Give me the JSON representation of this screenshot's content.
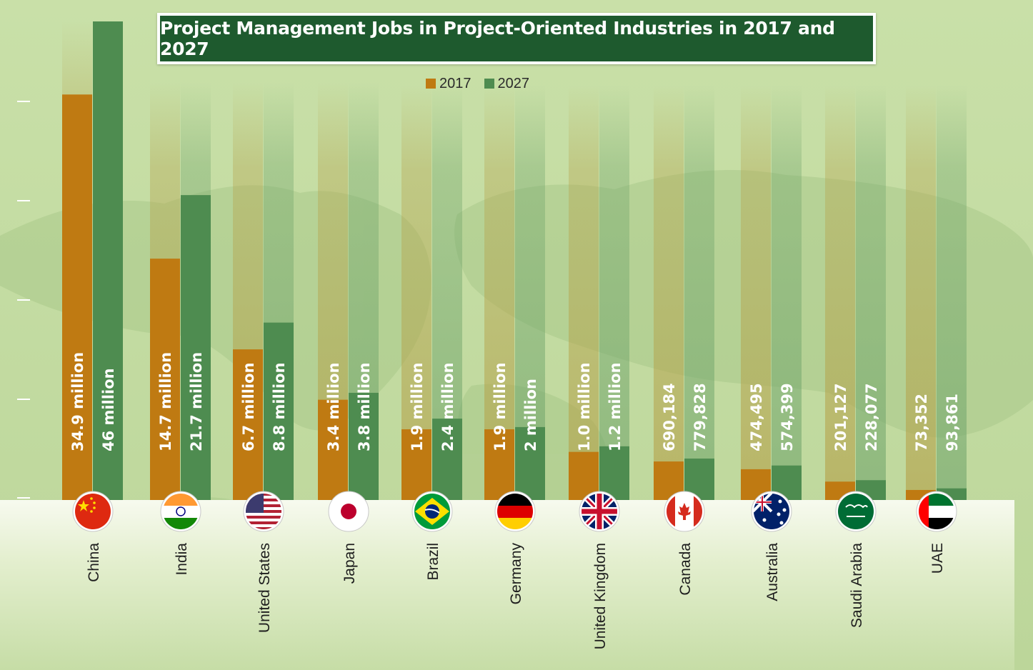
{
  "chart_data": {
    "type": "bar",
    "title": "Project Management Jobs in Project-Oriented Industries in 2017 and 2027",
    "categories": [
      "China",
      "India",
      "United States",
      "Japan",
      "Brazil",
      "Germany",
      "United Kingdom",
      "Canada",
      "Australia",
      "Saudi Arabia",
      "UAE"
    ],
    "series": [
      {
        "name": "2017",
        "color": "#bf7a12",
        "values": [
          34900000,
          14700000,
          6700000,
          3400000,
          1900000,
          1900000,
          1000000,
          690184,
          474495,
          201127,
          73352
        ],
        "labels": [
          "34.9 million",
          "14.7 million",
          "6.7 million",
          "3.4 million",
          "1.9 million",
          "1.9 million",
          "1.0 million",
          "690,184",
          "474,495",
          "201,127",
          "73,352"
        ]
      },
      {
        "name": "2027",
        "color": "#4e8c50",
        "values": [
          46000000,
          21700000,
          8800000,
          3800000,
          2400000,
          2000000,
          1200000,
          779828,
          574399,
          228077,
          93861
        ],
        "labels": [
          "46 million",
          "21.7 million",
          "8.8 million",
          "3.8 million",
          "2.4 million",
          "2 million",
          "1.2 million",
          "779,828",
          "574,399",
          "228,077",
          "93,861"
        ]
      }
    ],
    "xlabel": "",
    "ylabel": "",
    "y_scale": "power",
    "grid": false,
    "legend_position": "top-center",
    "flags": [
      "china-flag",
      "india-flag",
      "united-states-flag",
      "japan-flag",
      "brazil-flag",
      "germany-flag",
      "united-kingdom-flag",
      "canada-flag",
      "australia-flag",
      "saudi-arabia-flag",
      "uae-flag"
    ]
  }
}
